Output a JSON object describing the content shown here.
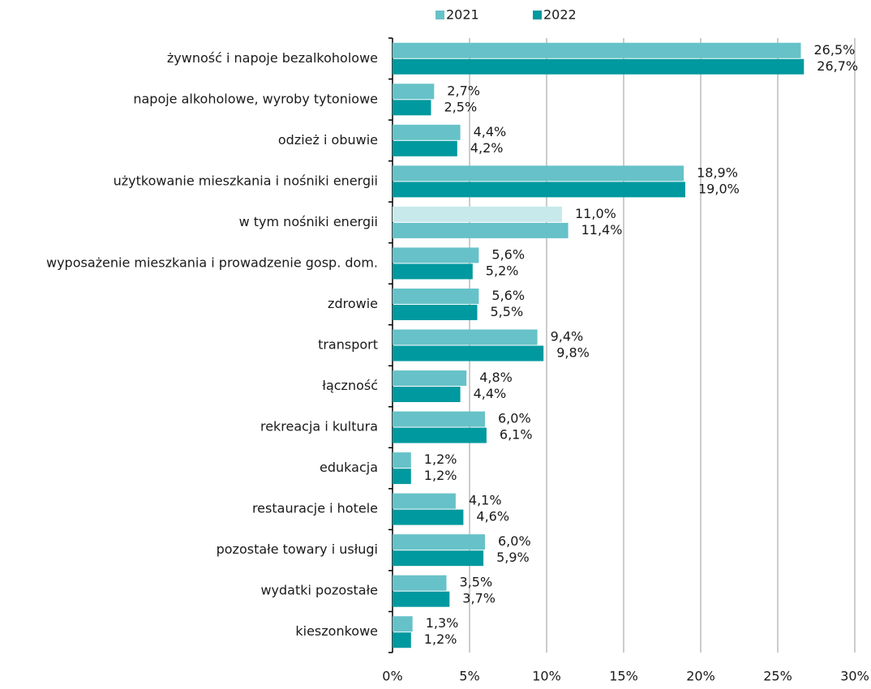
{
  "chart_data": {
    "type": "hbar",
    "categories": [
      "żywność i napoje bezalkoholowe",
      "napoje alkoholowe, wyroby tytoniowe",
      "odzież i obuwie",
      "użytkowanie mieszkania i nośniki energii",
      "w tym nośniki energii",
      "wyposażenie mieszkania i prowadzenie gosp. dom.",
      "zdrowie",
      "transport",
      "łączność",
      "rekreacja i kultura",
      "edukacja",
      "restauracje i hotele",
      "pozostałe towary i usługi",
      "wydatki pozostałe",
      "kieszonkowe"
    ],
    "series": [
      {
        "name": "2021",
        "color": "#66c2c8",
        "colors": [
          "#66c2c8",
          "#66c2c8",
          "#66c2c8",
          "#66c2c8",
          "#c8e9eb",
          "#66c2c8",
          "#66c2c8",
          "#66c2c8",
          "#66c2c8",
          "#66c2c8",
          "#66c2c8",
          "#66c2c8",
          "#66c2c8",
          "#66c2c8",
          "#66c2c8"
        ],
        "values": [
          26.5,
          2.7,
          4.4,
          18.9,
          11.0,
          5.6,
          5.6,
          9.4,
          4.8,
          6.0,
          1.2,
          4.1,
          6.0,
          3.5,
          1.3
        ],
        "value_labels": [
          "26,5%",
          "2,7%",
          "4,4%",
          "18,9%",
          "11,0%",
          "5,6%",
          "5,6%",
          "9,4%",
          "4,8%",
          "6,0%",
          "1,2%",
          "4,1%",
          "6,0%",
          "3,5%",
          "1,3%"
        ]
      },
      {
        "name": "2022",
        "color": "#00999f",
        "colors": [
          "#00999f",
          "#00999f",
          "#00999f",
          "#00999f",
          "#66c2c8",
          "#00999f",
          "#00999f",
          "#00999f",
          "#00999f",
          "#00999f",
          "#00999f",
          "#00999f",
          "#00999f",
          "#00999f",
          "#00999f"
        ],
        "values": [
          26.7,
          2.5,
          4.2,
          19.0,
          11.4,
          5.2,
          5.5,
          9.8,
          4.4,
          6.1,
          1.2,
          4.6,
          5.9,
          3.7,
          1.2
        ],
        "value_labels": [
          "26,7%",
          "2,5%",
          "4,2%",
          "19,0%",
          "11,4%",
          "5,2%",
          "5,5%",
          "9,8%",
          "4,4%",
          "6,1%",
          "1,2%",
          "4,6%",
          "5,9%",
          "3,7%",
          "1,2%"
        ]
      }
    ],
    "xlim": [
      0,
      30
    ],
    "xticks": [
      {
        "value": 0,
        "label": "0%"
      },
      {
        "value": 5,
        "label": "5%"
      },
      {
        "value": 10,
        "label": "10%"
      },
      {
        "value": 15,
        "label": "15%"
      },
      {
        "value": 20,
        "label": "20%"
      },
      {
        "value": 25,
        "label": "25%"
      },
      {
        "value": 30,
        "label": "30%"
      }
    ],
    "grid": true,
    "legend": "top"
  }
}
